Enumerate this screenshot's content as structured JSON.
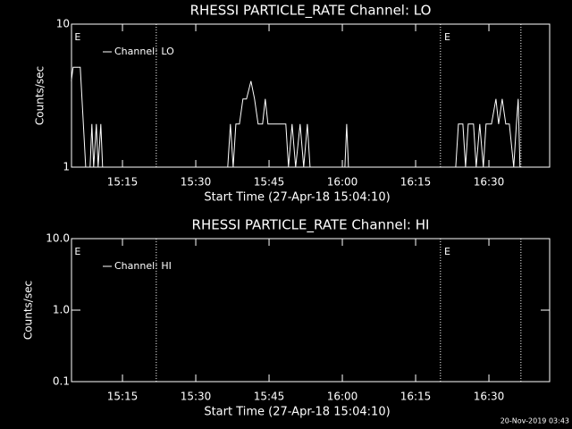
{
  "chart_data": [
    {
      "type": "line",
      "title": "RHESSI PARTICLE_RATE Channel: LO",
      "xlabel": "Start Time (27-Apr-18 15:04:10)",
      "ylabel": "Counts/sec",
      "x": [
        54272,
        54294,
        54382,
        54448,
        54502,
        54524,
        54546,
        54579,
        54601,
        54634,
        54656,
        56193,
        56226,
        56259,
        56292,
        56336,
        56379,
        56423,
        56478,
        56522,
        56566,
        56621,
        56654,
        56687,
        56906,
        56939,
        56983,
        57027,
        57082,
        57126,
        57170,
        57203,
        57631,
        57653,
        57675,
        58992,
        59025,
        59080,
        59113,
        59146,
        59211,
        59244,
        59288,
        59332,
        59365,
        59431,
        59486,
        59519,
        59563,
        59607,
        59651,
        59705,
        59738,
        59760,
        59782
      ],
      "series": [
        {
          "name": "Channel: LO",
          "color": "#ffffff",
          "values": [
            4,
            5,
            5,
            1,
            1,
            2,
            1,
            2,
            1,
            2,
            1,
            1,
            2,
            1,
            2,
            2,
            3,
            3,
            4,
            3,
            2,
            2,
            3,
            2,
            2,
            1,
            2,
            1,
            2,
            1,
            2,
            1,
            1,
            2,
            1,
            1,
            2,
            2,
            1,
            2,
            2,
            1,
            2,
            1,
            2,
            2,
            3,
            2,
            3,
            2,
            2,
            1,
            2,
            3,
            1
          ]
        }
      ],
      "xlim": [
        54274,
        60146
      ],
      "ylim": [
        1,
        10
      ],
      "ylog": true,
      "xticks": [
        {
          "value": 54900,
          "label": "15:15"
        },
        {
          "value": 55800,
          "label": "15:30"
        },
        {
          "value": 56700,
          "label": "15:45"
        },
        {
          "value": 57600,
          "label": "16:00"
        },
        {
          "value": 58500,
          "label": "16:15"
        },
        {
          "value": 59400,
          "label": "16:30"
        }
      ],
      "yticks": [
        1,
        10
      ],
      "vlines": [
        55315,
        58805,
        59793
      ],
      "annotations": [
        {
          "x": 54300,
          "text": "E"
        },
        {
          "x": 58840,
          "text": "E"
        }
      ],
      "legend": "upper left"
    },
    {
      "type": "line",
      "title": "RHESSI PARTICLE_RATE Channel: HI",
      "xlabel": "Start Time (27-Apr-18 15:04:10)",
      "ylabel": "Counts/sec",
      "x": [],
      "series": [
        {
          "name": "Channel: HI",
          "color": "#ffffff",
          "values": []
        }
      ],
      "xlim": [
        54274,
        60146
      ],
      "ylim": [
        0.1,
        10
      ],
      "ylog": true,
      "xticks": [
        {
          "value": 54900,
          "label": "15:15"
        },
        {
          "value": 55800,
          "label": "15:30"
        },
        {
          "value": 56700,
          "label": "15:45"
        },
        {
          "value": 57600,
          "label": "16:00"
        },
        {
          "value": 58500,
          "label": "16:15"
        },
        {
          "value": 59400,
          "label": "16:30"
        }
      ],
      "yticks": [
        0.1,
        {
          "value": 1,
          "label": "1.0"
        },
        {
          "value": 10,
          "label": "10.0"
        }
      ],
      "vlines": [
        55315,
        58805,
        59793
      ],
      "annotations": [
        {
          "x": 54300,
          "text": "E"
        },
        {
          "x": 58840,
          "text": "E"
        }
      ],
      "legend": "upper left"
    }
  ],
  "footer": "20-Nov-2019 03:43"
}
